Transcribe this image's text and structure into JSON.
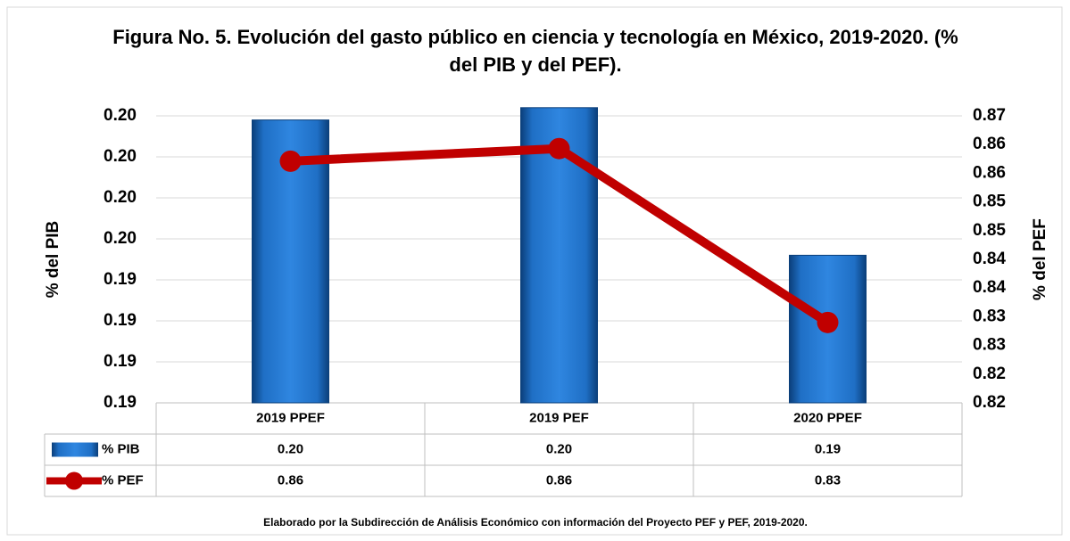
{
  "chart_data": {
    "type": "bar",
    "title": "Figura No. 5. Evolución del gasto público en ciencia y tecnología en México, 2019-2020. (% del PIB y del PEF).",
    "ylabel": "% del PIB",
    "y2label": "% del PEF",
    "note": "Elaborado por la Subdirección de Análisis Económico con información del Proyecto PEF y PEF, 2019-2020.",
    "categories": [
      "2019 PPEF",
      "2019 PEF",
      "2020 PPEF"
    ],
    "series": [
      {
        "name": "% PIB",
        "type": "bar",
        "color": "#1f6fc5",
        "values": [
          0.1979,
          0.1982,
          0.1946
        ],
        "value_labels": [
          "0.20",
          "0.20",
          "0.19"
        ]
      },
      {
        "name": "% PEF",
        "type": "line",
        "axis": "y2",
        "color": "#c00000",
        "values": [
          0.8621,
          0.8643,
          0.834
        ],
        "value_labels": [
          "0.86",
          "0.86",
          "0.83"
        ]
      }
    ],
    "ylim": [
      0.191,
      0.198
    ],
    "yticks": [
      {
        "value": 0.191,
        "label": "0.19"
      },
      {
        "value": 0.192,
        "label": "0.19"
      },
      {
        "value": 0.193,
        "label": "0.19"
      },
      {
        "value": 0.194,
        "label": "0.19"
      },
      {
        "value": 0.195,
        "label": "0.20"
      },
      {
        "value": 0.196,
        "label": "0.20"
      },
      {
        "value": 0.197,
        "label": "0.20"
      },
      {
        "value": 0.198,
        "label": "0.20"
      }
    ],
    "y2lim": [
      0.82,
      0.87
    ],
    "y2ticks": [
      0.82,
      {
        "value": 0.825,
        "label": "0.82"
      },
      0.83,
      {
        "value": 0.835,
        "label": "0.83"
      },
      0.84,
      {
        "value": 0.845,
        "label": "0.84"
      },
      0.85,
      {
        "value": 0.855,
        "label": "0.85"
      },
      0.86,
      {
        "value": 0.865,
        "label": "0.86"
      },
      0.87
    ],
    "grid": true
  }
}
